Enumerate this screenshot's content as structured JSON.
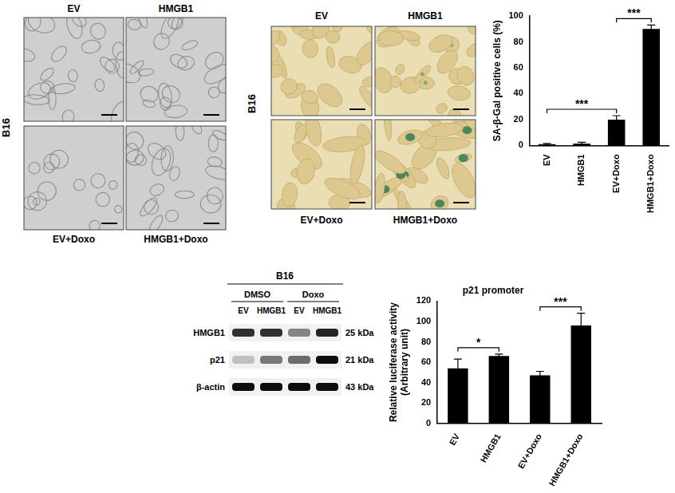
{
  "figure": {
    "brightfield": {
      "row_label": "B16",
      "top_labels": [
        "EV",
        "HMGB1"
      ],
      "bottom_labels": [
        "EV+Doxo",
        "HMGB1+Doxo"
      ]
    },
    "staining": {
      "row_label": "B16",
      "top_labels": [
        "EV",
        "HMGB1"
      ],
      "bottom_labels": [
        "EV+Doxo",
        "HMGB1+Doxo"
      ]
    },
    "western_blot": {
      "title": "B16",
      "groups": [
        {
          "name": "DMSO",
          "lanes": [
            "EV",
            "HMGB1"
          ]
        },
        {
          "name": "Doxo",
          "lanes": [
            "EV",
            "HMGB1"
          ]
        }
      ],
      "rows": [
        {
          "name": "HMGB1",
          "size": "25 kDa",
          "intensity": [
            0.8,
            0.8,
            0.45,
            0.85
          ]
        },
        {
          "name": "p21",
          "size": "21 kDa",
          "intensity": [
            0.2,
            0.5,
            0.55,
            0.95
          ]
        },
        {
          "name": "β-actin",
          "size": "43 kDa",
          "intensity": [
            0.95,
            0.95,
            0.95,
            0.95
          ]
        }
      ]
    }
  },
  "chart_data": [
    {
      "type": "bar",
      "y_label": "SA-β-Gal positive cells (%)",
      "categories": [
        "EV",
        "HMGB1",
        "EV+Doxo",
        "HMGB1+Doxo"
      ],
      "values": [
        1,
        1.5,
        20,
        90
      ],
      "errors": [
        0.5,
        1,
        3,
        3
      ],
      "color": "#000000",
      "ylim": [
        0,
        100
      ],
      "yticks": [
        0,
        20,
        40,
        60,
        80,
        100
      ],
      "grid": false,
      "annotations": [
        {
          "from": "EV",
          "to": "EV+Doxo",
          "text": "***"
        },
        {
          "from": "EV+Doxo",
          "to": "HMGB1+Doxo",
          "text": "***"
        }
      ]
    },
    {
      "type": "bar",
      "title": "p21 promoter",
      "y_label": [
        "Relative luciferase activity",
        "(Arbitrary unit)"
      ],
      "categories": [
        "EV",
        "HMGB1",
        "EV+Doxo",
        "HMGB1+Doxo"
      ],
      "values": [
        54,
        66,
        47,
        96
      ],
      "errors": [
        9,
        2,
        4,
        12
      ],
      "color": "#000000",
      "ylim": [
        0,
        120
      ],
      "yticks": [
        0,
        20,
        40,
        60,
        80,
        100,
        120
      ],
      "grid": false,
      "annotations": [
        {
          "from": "EV",
          "to": "HMGB1",
          "text": "*"
        },
        {
          "from": "EV+Doxo",
          "to": "HMGB1+Doxo",
          "text": "***"
        }
      ]
    }
  ]
}
